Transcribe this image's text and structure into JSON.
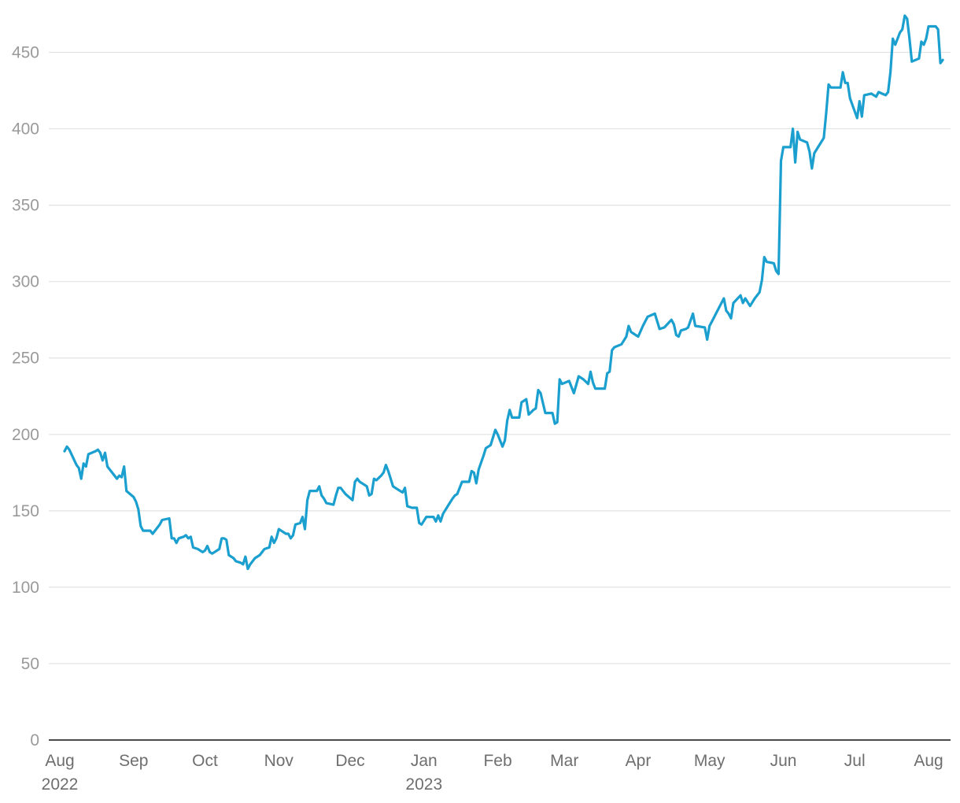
{
  "chart_data": {
    "type": "line",
    "title": "",
    "xlabel": "",
    "ylabel": "",
    "ylim": [
      0,
      475
    ],
    "yticks": [
      0,
      50,
      100,
      150,
      200,
      250,
      300,
      350,
      400,
      450
    ],
    "grid": true,
    "x_ticks": [
      {
        "date": "2022-08-01",
        "label": "Aug",
        "sublabel": "2022"
      },
      {
        "date": "2022-09-01",
        "label": "Sep",
        "sublabel": ""
      },
      {
        "date": "2022-10-01",
        "label": "Oct",
        "sublabel": ""
      },
      {
        "date": "2022-11-01",
        "label": "Nov",
        "sublabel": ""
      },
      {
        "date": "2022-12-01",
        "label": "Dec",
        "sublabel": ""
      },
      {
        "date": "2023-01-01",
        "label": "Jan",
        "sublabel": "2023"
      },
      {
        "date": "2023-02-01",
        "label": "Feb",
        "sublabel": ""
      },
      {
        "date": "2023-03-01",
        "label": "Mar",
        "sublabel": ""
      },
      {
        "date": "2023-04-01",
        "label": "Apr",
        "sublabel": ""
      },
      {
        "date": "2023-05-01",
        "label": "May",
        "sublabel": ""
      },
      {
        "date": "2023-06-01",
        "label": "Jun",
        "sublabel": ""
      },
      {
        "date": "2023-07-01",
        "label": "Jul",
        "sublabel": ""
      },
      {
        "date": "2023-08-01",
        "label": "Aug",
        "sublabel": ""
      }
    ],
    "colors": {
      "line": "#1b9fcf",
      "grid": "#e2e2e2",
      "axis": "#111111",
      "ytick": "#9a9a9a",
      "xtick": "#6e6e6e"
    },
    "series": [
      {
        "points": [
          [
            "2022-08-03",
            189
          ],
          [
            "2022-08-04",
            192
          ],
          [
            "2022-08-05",
            190
          ],
          [
            "2022-08-08",
            180
          ],
          [
            "2022-08-09",
            178
          ],
          [
            "2022-08-10",
            171
          ],
          [
            "2022-08-11",
            181
          ],
          [
            "2022-08-12",
            179
          ],
          [
            "2022-08-13",
            187
          ],
          [
            "2022-08-16",
            189
          ],
          [
            "2022-08-17",
            190
          ],
          [
            "2022-08-18",
            188
          ],
          [
            "2022-08-19",
            183
          ],
          [
            "2022-08-20",
            188
          ],
          [
            "2022-08-21",
            179
          ],
          [
            "2022-08-24",
            173
          ],
          [
            "2022-08-25",
            171
          ],
          [
            "2022-08-26",
            173
          ],
          [
            "2022-08-27",
            172
          ],
          [
            "2022-08-28",
            179
          ],
          [
            "2022-08-29",
            163
          ],
          [
            "2022-09-01",
            159
          ],
          [
            "2022-09-02",
            156
          ],
          [
            "2022-09-03",
            151
          ],
          [
            "2022-09-04",
            140
          ],
          [
            "2022-09-05",
            137
          ],
          [
            "2022-09-07",
            137
          ],
          [
            "2022-09-08",
            137
          ],
          [
            "2022-09-09",
            135
          ],
          [
            "2022-09-10",
            137
          ],
          [
            "2022-09-12",
            141
          ],
          [
            "2022-09-13",
            144
          ],
          [
            "2022-09-16",
            145
          ],
          [
            "2022-09-17",
            132
          ],
          [
            "2022-09-18",
            132
          ],
          [
            "2022-09-19",
            129
          ],
          [
            "2022-09-20",
            132
          ],
          [
            "2022-09-22",
            133
          ],
          [
            "2022-09-23",
            134
          ],
          [
            "2022-09-24",
            132
          ],
          [
            "2022-09-25",
            133
          ],
          [
            "2022-09-26",
            126
          ],
          [
            "2022-09-28",
            125
          ],
          [
            "2022-09-30",
            123
          ],
          [
            "2022-10-01",
            124
          ],
          [
            "2022-10-02",
            127
          ],
          [
            "2022-10-03",
            123
          ],
          [
            "2022-10-04",
            122
          ],
          [
            "2022-10-05",
            123
          ],
          [
            "2022-10-07",
            125
          ],
          [
            "2022-10-08",
            132
          ],
          [
            "2022-10-09",
            132
          ],
          [
            "2022-10-10",
            131
          ],
          [
            "2022-10-11",
            121
          ],
          [
            "2022-10-13",
            119
          ],
          [
            "2022-10-14",
            117
          ],
          [
            "2022-10-16",
            116
          ],
          [
            "2022-10-17",
            115
          ],
          [
            "2022-10-18",
            120
          ],
          [
            "2022-10-19",
            112
          ],
          [
            "2022-10-20",
            115
          ],
          [
            "2022-10-22",
            119
          ],
          [
            "2022-10-24",
            121
          ],
          [
            "2022-10-26",
            125
          ],
          [
            "2022-10-28",
            126
          ],
          [
            "2022-10-29",
            133
          ],
          [
            "2022-10-30",
            129
          ],
          [
            "2022-10-31",
            132
          ],
          [
            "2022-11-01",
            138
          ],
          [
            "2022-11-02",
            137
          ],
          [
            "2022-11-04",
            135
          ],
          [
            "2022-11-05",
            135
          ],
          [
            "2022-11-06",
            132
          ],
          [
            "2022-11-07",
            134
          ],
          [
            "2022-11-08",
            141
          ],
          [
            "2022-11-10",
            142
          ],
          [
            "2022-11-11",
            146
          ],
          [
            "2022-11-12",
            138
          ],
          [
            "2022-11-13",
            157
          ],
          [
            "2022-11-14",
            163
          ],
          [
            "2022-11-17",
            163
          ],
          [
            "2022-11-18",
            166
          ],
          [
            "2022-11-19",
            160
          ],
          [
            "2022-11-20",
            158
          ],
          [
            "2022-11-21",
            155
          ],
          [
            "2022-11-24",
            154
          ],
          [
            "2022-11-25",
            160
          ],
          [
            "2022-11-26",
            165
          ],
          [
            "2022-11-27",
            165
          ],
          [
            "2022-11-29",
            161
          ],
          [
            "2022-12-02",
            157
          ],
          [
            "2022-12-03",
            169
          ],
          [
            "2022-12-04",
            171
          ],
          [
            "2022-12-05",
            169
          ],
          [
            "2022-12-07",
            167
          ],
          [
            "2022-12-08",
            166
          ],
          [
            "2022-12-09",
            160
          ],
          [
            "2022-12-10",
            161
          ],
          [
            "2022-12-11",
            171
          ],
          [
            "2022-12-12",
            170
          ],
          [
            "2022-12-14",
            173
          ],
          [
            "2022-12-15",
            175
          ],
          [
            "2022-12-16",
            180
          ],
          [
            "2022-12-17",
            176
          ],
          [
            "2022-12-19",
            166
          ],
          [
            "2022-12-21",
            164
          ],
          [
            "2022-12-23",
            162
          ],
          [
            "2022-12-24",
            165
          ],
          [
            "2022-12-25",
            153
          ],
          [
            "2022-12-27",
            152
          ],
          [
            "2022-12-29",
            152
          ],
          [
            "2022-12-30",
            142
          ],
          [
            "2022-12-31",
            141
          ],
          [
            "2023-01-02",
            146
          ],
          [
            "2023-01-05",
            146
          ],
          [
            "2023-01-06",
            143
          ],
          [
            "2023-01-07",
            147
          ],
          [
            "2023-01-08",
            143
          ],
          [
            "2023-01-09",
            148
          ],
          [
            "2023-01-11",
            153
          ],
          [
            "2023-01-13",
            158
          ],
          [
            "2023-01-14",
            160
          ],
          [
            "2023-01-15",
            161
          ],
          [
            "2023-01-17",
            169
          ],
          [
            "2023-01-20",
            169
          ],
          [
            "2023-01-21",
            176
          ],
          [
            "2023-01-22",
            175
          ],
          [
            "2023-01-23",
            168
          ],
          [
            "2023-01-24",
            177
          ],
          [
            "2023-01-26",
            186
          ],
          [
            "2023-01-27",
            191
          ],
          [
            "2023-01-29",
            193
          ],
          [
            "2023-01-31",
            203
          ],
          [
            "2023-02-01",
            200
          ],
          [
            "2023-02-03",
            192
          ],
          [
            "2023-02-04",
            196
          ],
          [
            "2023-02-05",
            209
          ],
          [
            "2023-02-06",
            216
          ],
          [
            "2023-02-07",
            211
          ],
          [
            "2023-02-10",
            211
          ],
          [
            "2023-02-11",
            221
          ],
          [
            "2023-02-13",
            223
          ],
          [
            "2023-02-14",
            213
          ],
          [
            "2023-02-16",
            216
          ],
          [
            "2023-02-17",
            217
          ],
          [
            "2023-02-18",
            229
          ],
          [
            "2023-02-19",
            227
          ],
          [
            "2023-02-21",
            214
          ],
          [
            "2023-02-24",
            214
          ],
          [
            "2023-02-25",
            207
          ],
          [
            "2023-02-26",
            208
          ],
          [
            "2023-02-27",
            236
          ],
          [
            "2023-02-28",
            233
          ],
          [
            "2023-03-03",
            235
          ],
          [
            "2023-03-05",
            227
          ],
          [
            "2023-03-07",
            238
          ],
          [
            "2023-03-09",
            236
          ],
          [
            "2023-03-11",
            233
          ],
          [
            "2023-03-12",
            241
          ],
          [
            "2023-03-13",
            234
          ],
          [
            "2023-03-14",
            230
          ],
          [
            "2023-03-18",
            230
          ],
          [
            "2023-03-19",
            240
          ],
          [
            "2023-03-20",
            241
          ],
          [
            "2023-03-21",
            255
          ],
          [
            "2023-03-22",
            257
          ],
          [
            "2023-03-25",
            259
          ],
          [
            "2023-03-27",
            264
          ],
          [
            "2023-03-28",
            271
          ],
          [
            "2023-03-29",
            267
          ],
          [
            "2023-03-31",
            265
          ],
          [
            "2023-04-01",
            264
          ],
          [
            "2023-04-03",
            271
          ],
          [
            "2023-04-05",
            277
          ],
          [
            "2023-04-08",
            279
          ],
          [
            "2023-04-10",
            269
          ],
          [
            "2023-04-12",
            270
          ],
          [
            "2023-04-15",
            275
          ],
          [
            "2023-04-16",
            272
          ],
          [
            "2023-04-17",
            265
          ],
          [
            "2023-04-18",
            264
          ],
          [
            "2023-04-19",
            268
          ],
          [
            "2023-04-21",
            269
          ],
          [
            "2023-04-22",
            270
          ],
          [
            "2023-04-24",
            279
          ],
          [
            "2023-04-25",
            271
          ],
          [
            "2023-04-29",
            270
          ],
          [
            "2023-04-30",
            262
          ],
          [
            "2023-05-01",
            271
          ],
          [
            "2023-05-02",
            274
          ],
          [
            "2023-05-04",
            280
          ],
          [
            "2023-05-07",
            289
          ],
          [
            "2023-05-08",
            281
          ],
          [
            "2023-05-09",
            279
          ],
          [
            "2023-05-10",
            276
          ],
          [
            "2023-05-11",
            286
          ],
          [
            "2023-05-14",
            291
          ],
          [
            "2023-05-15",
            286
          ],
          [
            "2023-05-16",
            289
          ],
          [
            "2023-05-18",
            284
          ],
          [
            "2023-05-20",
            289
          ],
          [
            "2023-05-22",
            293
          ],
          [
            "2023-05-23",
            301
          ],
          [
            "2023-05-24",
            316
          ],
          [
            "2023-05-25",
            313
          ],
          [
            "2023-05-28",
            312
          ],
          [
            "2023-05-29",
            307
          ],
          [
            "2023-05-30",
            305
          ],
          [
            "2023-05-31",
            379
          ],
          [
            "2023-06-01",
            388
          ],
          [
            "2023-06-04",
            388
          ],
          [
            "2023-06-05",
            400
          ],
          [
            "2023-06-06",
            378
          ],
          [
            "2023-06-07",
            398
          ],
          [
            "2023-06-08",
            393
          ],
          [
            "2023-06-11",
            391
          ],
          [
            "2023-06-12",
            385
          ],
          [
            "2023-06-13",
            374
          ],
          [
            "2023-06-14",
            384
          ],
          [
            "2023-06-18",
            394
          ],
          [
            "2023-06-19",
            410
          ],
          [
            "2023-06-20",
            429
          ],
          [
            "2023-06-21",
            427
          ],
          [
            "2023-06-25",
            427
          ],
          [
            "2023-06-26",
            437
          ],
          [
            "2023-06-27",
            430
          ],
          [
            "2023-06-28",
            430
          ],
          [
            "2023-06-29",
            420
          ],
          [
            "2023-07-02",
            407
          ],
          [
            "2023-07-03",
            418
          ],
          [
            "2023-07-04",
            408
          ],
          [
            "2023-07-05",
            422
          ],
          [
            "2023-07-08",
            423
          ],
          [
            "2023-07-09",
            422
          ],
          [
            "2023-07-10",
            421
          ],
          [
            "2023-07-11",
            424
          ],
          [
            "2023-07-14",
            422
          ],
          [
            "2023-07-15",
            424
          ],
          [
            "2023-07-16",
            437
          ],
          [
            "2023-07-17",
            459
          ],
          [
            "2023-07-18",
            455
          ],
          [
            "2023-07-20",
            463
          ],
          [
            "2023-07-21",
            465
          ],
          [
            "2023-07-22",
            474
          ],
          [
            "2023-07-23",
            472
          ],
          [
            "2023-07-24",
            459
          ],
          [
            "2023-07-25",
            444
          ],
          [
            "2023-07-28",
            446
          ],
          [
            "2023-07-29",
            457
          ],
          [
            "2023-07-30",
            455
          ],
          [
            "2023-07-31",
            459
          ],
          [
            "2023-08-01",
            467
          ],
          [
            "2023-08-04",
            467
          ],
          [
            "2023-08-05",
            465
          ],
          [
            "2023-08-06",
            443
          ],
          [
            "2023-08-07",
            445
          ]
        ]
      }
    ]
  }
}
